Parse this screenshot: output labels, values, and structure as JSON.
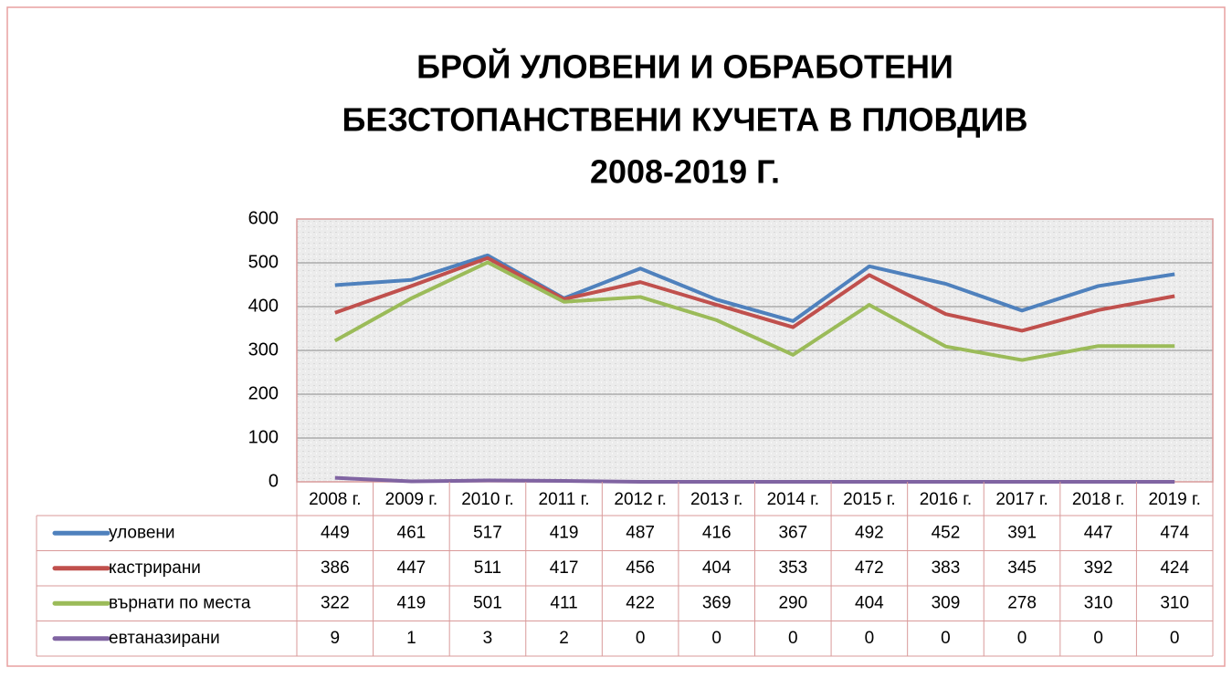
{
  "chart_data": {
    "type": "line",
    "title": [
      "БРОЙ УЛОВЕНИ И ОБРАБОТЕНИ",
      "БЕЗСТОПАНСТВЕНИ КУЧЕТА В ПЛОВДИВ",
      "2008-2019 Г."
    ],
    "categories": [
      "2008 г.",
      "2009 г.",
      "2010 г.",
      "2011 г.",
      "2012 г.",
      "2013 г.",
      "2014 г.",
      "2015 г.",
      "2016 г.",
      "2017 г.",
      "2018 г.",
      "2019 г."
    ],
    "series": [
      {
        "name": "уловени",
        "color": "#4f81bd",
        "values": [
          449,
          461,
          517,
          419,
          487,
          416,
          367,
          492,
          452,
          391,
          447,
          474
        ]
      },
      {
        "name": "кастрирани",
        "color": "#c0504d",
        "values": [
          386,
          447,
          511,
          417,
          456,
          404,
          353,
          472,
          383,
          345,
          392,
          424
        ]
      },
      {
        "name": "върнати по места",
        "color": "#9bbb59",
        "values": [
          322,
          419,
          501,
          411,
          422,
          369,
          290,
          404,
          309,
          278,
          310,
          310
        ]
      },
      {
        "name": "евтаназирани",
        "color": "#8064a2",
        "values": [
          9,
          1,
          3,
          2,
          0,
          0,
          0,
          0,
          0,
          0,
          0,
          0
        ]
      }
    ],
    "ylim": [
      0,
      600
    ],
    "yticks": [
      0,
      100,
      200,
      300,
      400,
      500,
      600
    ],
    "grid": true,
    "data_table": true
  }
}
